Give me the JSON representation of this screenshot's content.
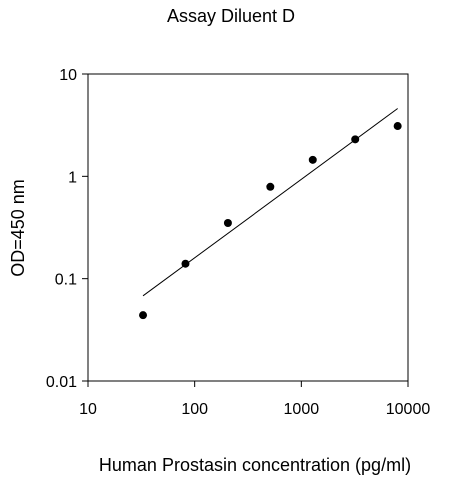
{
  "chart_data": {
    "type": "scatter",
    "title": "Assay Diluent D",
    "xlabel": "Human Prostasin concentration (pg/ml)",
    "ylabel": "OD=450 nm",
    "x_scale": "log",
    "y_scale": "log",
    "xlim": [
      10,
      10000
    ],
    "ylim": [
      0.01,
      10
    ],
    "x_ticks": [
      10,
      100,
      1000,
      10000
    ],
    "x_tick_labels": [
      "10",
      "100",
      "1000",
      "10000"
    ],
    "y_ticks": [
      0.01,
      0.1,
      1,
      10
    ],
    "y_tick_labels": [
      "0.01",
      "0.1",
      "1",
      "10"
    ],
    "grid": false,
    "legend": "none",
    "series": [
      {
        "points": [
          {
            "x": 32.8,
            "y": 0.044
          },
          {
            "x": 82,
            "y": 0.14
          },
          {
            "x": 205,
            "y": 0.35
          },
          {
            "x": 512,
            "y": 0.79
          },
          {
            "x": 1280,
            "y": 1.45
          },
          {
            "x": 3200,
            "y": 2.3
          },
          {
            "x": 8000,
            "y": 3.1
          }
        ],
        "marker_color": "#000000"
      }
    ],
    "fit_line": {
      "x": [
        32.8,
        8000
      ],
      "y": [
        0.068,
        4.6
      ],
      "color": "#000000"
    }
  }
}
